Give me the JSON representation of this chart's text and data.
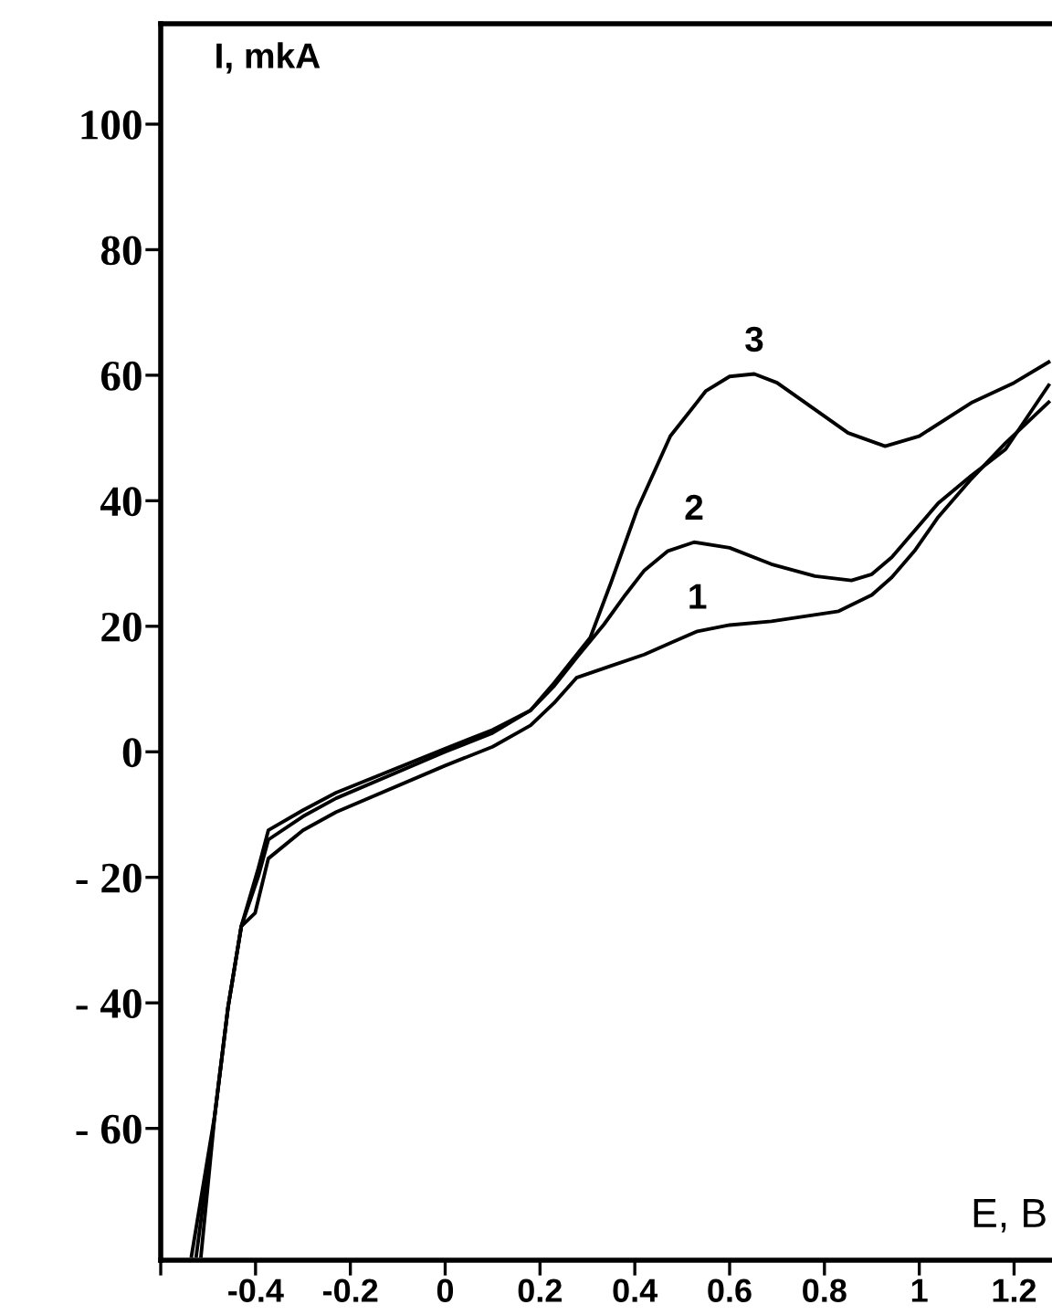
{
  "chart_data": {
    "type": "line",
    "xlabel": "E, B",
    "ylabel": "I, mkA",
    "xlim": [
      -0.6,
      1.28
    ],
    "ylim": [
      -81,
      116
    ],
    "xticks": [
      {
        "value": -0.6,
        "label": null
      },
      -0.4,
      -0.2,
      0,
      0.2,
      0.4,
      0.6,
      0.8,
      1,
      1.2
    ],
    "yticks": [
      {
        "value": -60,
        "label": "- 60"
      },
      {
        "value": -40,
        "label": "- 40"
      },
      {
        "value": -20,
        "label": "- 20"
      },
      0,
      20,
      40,
      60,
      80,
      100
    ],
    "grid": false,
    "marker": "none",
    "line_style": "solid",
    "series": [
      {
        "name": "1",
        "color": "#000000",
        "x": [
          -0.515,
          -0.486,
          -0.458,
          -0.43,
          -0.401,
          -0.373,
          -0.3,
          -0.23,
          0,
          0.1,
          0.18,
          0.23,
          0.277,
          0.35,
          0.42,
          0.48,
          0.532,
          0.6,
          0.688,
          0.83,
          0.9,
          0.942,
          0.99,
          1.04,
          1.11,
          1.182,
          1.273
        ],
        "values": [
          -80.3,
          -57.9,
          -40.7,
          -27.8,
          -25.7,
          -17,
          -12.5,
          -9.6,
          -2.2,
          0.8,
          4.2,
          7.8,
          11.8,
          13.7,
          15.5,
          17.5,
          19.2,
          20.2,
          20.8,
          22.4,
          25,
          27.8,
          32,
          37.4,
          43.5,
          49.2,
          55.7
        ]
      },
      {
        "name": "2",
        "color": "#000000",
        "x": [
          -0.535,
          -0.486,
          -0.458,
          -0.43,
          -0.394,
          -0.373,
          -0.3,
          -0.23,
          0,
          0.1,
          0.18,
          0.23,
          0.277,
          0.335,
          0.38,
          0.42,
          0.47,
          0.525,
          0.6,
          0.688,
          0.78,
          0.857,
          0.9,
          0.942,
          1.04,
          1.11,
          1.182,
          1.273
        ],
        "values": [
          -80.3,
          -57.9,
          -40.7,
          -27.8,
          -19.8,
          -14,
          -10.3,
          -7.4,
          0,
          3,
          6.6,
          10.5,
          15,
          20.3,
          25,
          28.9,
          32,
          33.4,
          32.5,
          29.9,
          28,
          27.3,
          28.3,
          31,
          39.6,
          44,
          48.2,
          58.4
        ]
      },
      {
        "name": "3",
        "color": "#000000",
        "x": [
          -0.525,
          -0.486,
          -0.458,
          -0.43,
          -0.394,
          -0.373,
          -0.3,
          -0.23,
          0,
          0.1,
          0.18,
          0.23,
          0.306,
          0.35,
          0.405,
          0.475,
          0.55,
          0.6,
          0.652,
          0.7,
          0.758,
          0.85,
          0.928,
          1.0,
          1.112,
          1.2,
          1.273
        ],
        "values": [
          -80.3,
          -57.9,
          -40.7,
          -27.8,
          -18.5,
          -12.5,
          -9.3,
          -6.5,
          0.5,
          3.5,
          6.6,
          11,
          18.2,
          27,
          38.6,
          50.3,
          57.5,
          59.8,
          60.2,
          58.8,
          55.7,
          50.8,
          48.7,
          50.3,
          55.7,
          58.8,
          62.1
        ]
      }
    ]
  }
}
